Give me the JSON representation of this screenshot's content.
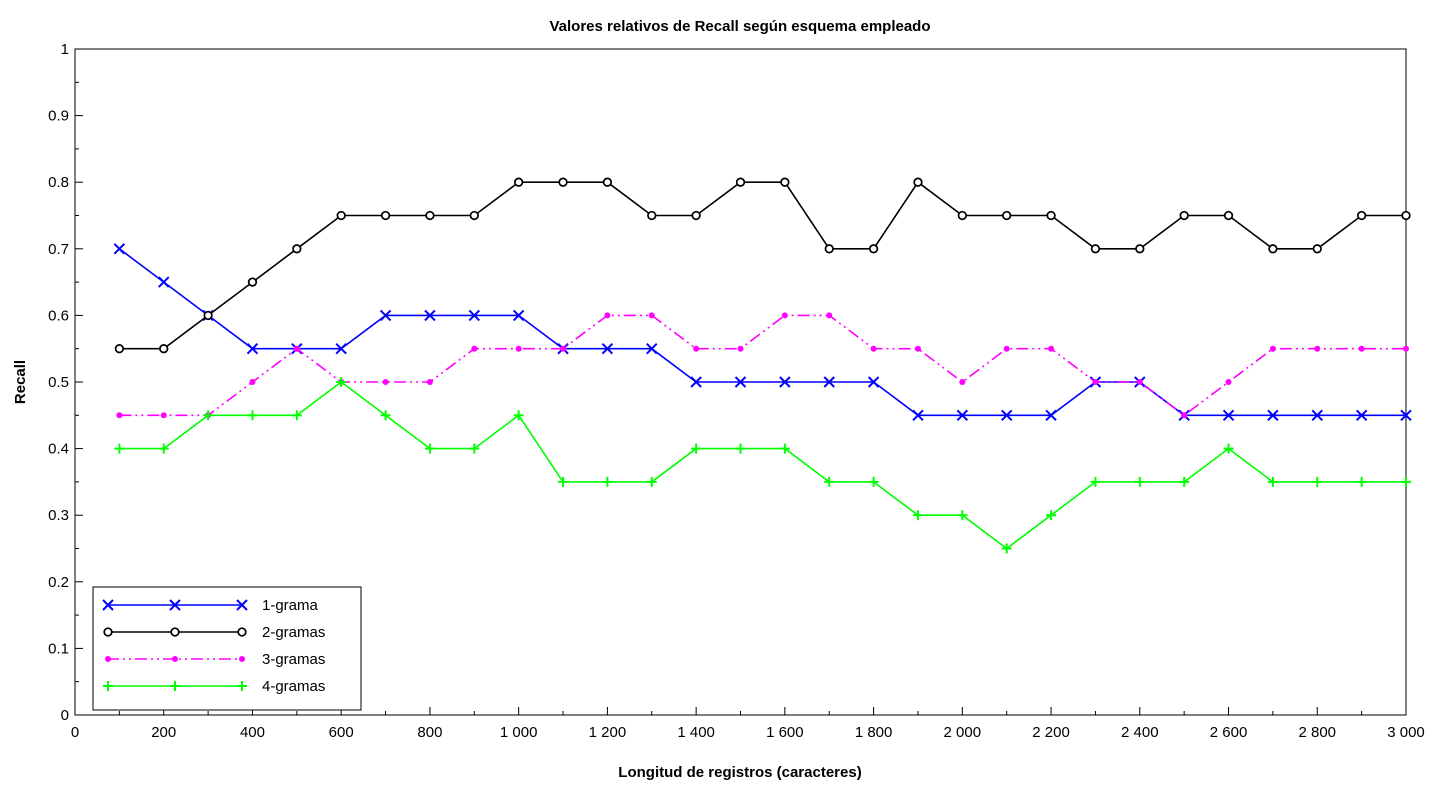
{
  "chart_data": {
    "type": "line",
    "title": "Valores relativos de Recall según esquema empleado",
    "xlabel": "Longitud de registros (caracteres)",
    "ylabel": "Recall",
    "xlim": [
      0,
      3000
    ],
    "ylim": [
      0,
      1
    ],
    "x_ticks": [
      0,
      200,
      400,
      600,
      800,
      1000,
      1200,
      1400,
      1600,
      1800,
      2000,
      2200,
      2400,
      2600,
      2800,
      3000
    ],
    "x_tick_labels": [
      "0",
      "200",
      "400",
      "600",
      "800",
      "1 000",
      "1 200",
      "1 400",
      "1 600",
      "1 800",
      "2 000",
      "2 200",
      "2 400",
      "2 600",
      "2 800",
      "3 000"
    ],
    "y_ticks": [
      0,
      0.1,
      0.2,
      0.3,
      0.4,
      0.5,
      0.6,
      0.7,
      0.8,
      0.9,
      1
    ],
    "y_tick_labels": [
      "0",
      "0.1",
      "0.2",
      "0.3",
      "0.4",
      "0.5",
      "0.6",
      "0.7",
      "0.8",
      "0.9",
      "1"
    ],
    "grid": false,
    "legend_position": "bottom-left",
    "x": [
      100,
      200,
      300,
      400,
      500,
      600,
      700,
      800,
      900,
      1000,
      1100,
      1200,
      1300,
      1400,
      1500,
      1600,
      1700,
      1800,
      1900,
      2000,
      2100,
      2200,
      2300,
      2400,
      2500,
      2600,
      2700,
      2800,
      2900,
      3000
    ],
    "series": [
      {
        "name": "1-grama",
        "color": "#0000ff",
        "line_style": "solid",
        "marker": "x",
        "values": [
          0.7,
          0.65,
          0.6,
          0.55,
          0.55,
          0.55,
          0.6,
          0.6,
          0.6,
          0.6,
          0.55,
          0.55,
          0.55,
          0.5,
          0.5,
          0.5,
          0.5,
          0.5,
          0.45,
          0.45,
          0.45,
          0.45,
          0.5,
          0.5,
          0.45,
          0.45,
          0.45,
          0.45,
          0.45,
          0.45
        ]
      },
      {
        "name": "2-gramas",
        "color": "#000000",
        "line_style": "solid",
        "marker": "circle-open",
        "values": [
          0.55,
          0.55,
          0.6,
          0.65,
          0.7,
          0.75,
          0.75,
          0.75,
          0.75,
          0.8,
          0.8,
          0.8,
          0.75,
          0.75,
          0.8,
          0.8,
          0.7,
          0.7,
          0.8,
          0.75,
          0.75,
          0.75,
          0.7,
          0.7,
          0.75,
          0.75,
          0.7,
          0.7,
          0.75,
          0.75
        ]
      },
      {
        "name": "3-gramas",
        "color": "#ff00ff",
        "line_style": "dash-dot-dot",
        "marker": "dot",
        "values": [
          0.45,
          0.45,
          0.45,
          0.5,
          0.55,
          0.5,
          0.5,
          0.5,
          0.55,
          0.55,
          0.55,
          0.6,
          0.6,
          0.55,
          0.55,
          0.6,
          0.6,
          0.55,
          0.55,
          0.5,
          0.55,
          0.55,
          0.5,
          0.5,
          0.45,
          0.5,
          0.55,
          0.55,
          0.55,
          0.55
        ]
      },
      {
        "name": "4-gramas",
        "color": "#00ff00",
        "line_style": "solid",
        "marker": "plus",
        "values": [
          0.4,
          0.4,
          0.45,
          0.45,
          0.45,
          0.5,
          0.45,
          0.4,
          0.4,
          0.45,
          0.35,
          0.35,
          0.35,
          0.4,
          0.4,
          0.4,
          0.35,
          0.35,
          0.3,
          0.3,
          0.25,
          0.3,
          0.35,
          0.35,
          0.35,
          0.4,
          0.35,
          0.35,
          0.35,
          0.35
        ]
      }
    ]
  }
}
